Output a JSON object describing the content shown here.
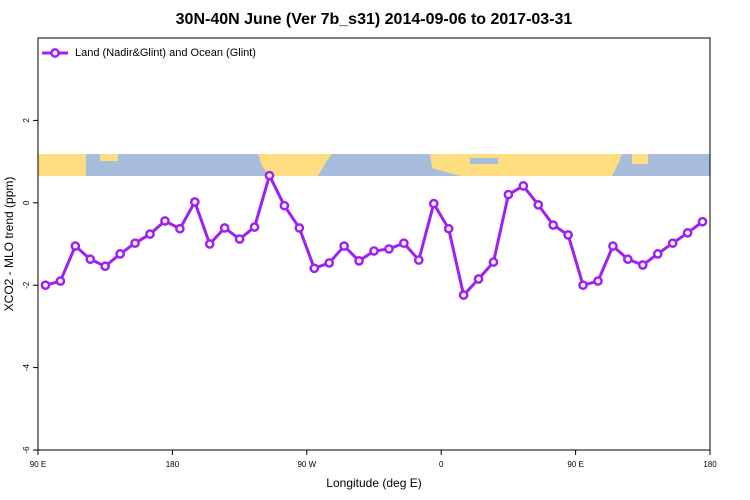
{
  "chart_data": {
    "type": "line",
    "title": "30N-40N June (Ver 7b_s31)   2014-09-06 to 2017-03-31",
    "x_label": "Longitude (deg E)",
    "y_label": "XCO2 - MLO trend (ppm)",
    "xlim": [
      90,
      540
    ],
    "xticks": [
      {
        "value": 90,
        "label": "90 E"
      },
      {
        "value": 180,
        "label": "180"
      },
      {
        "value": 270,
        "label": "90 W"
      },
      {
        "value": 360,
        "label": "0"
      },
      {
        "value": 450,
        "label": "90 E"
      },
      {
        "value": 540,
        "label": "180"
      }
    ],
    "ylim": [
      -6,
      4
    ],
    "yticks": [
      -6,
      -4,
      -2,
      0,
      2
    ],
    "legend": "top-left",
    "x": [
      95,
      105,
      115,
      125,
      135,
      145,
      155,
      165,
      175,
      185,
      195,
      205,
      215,
      225,
      235,
      245,
      255,
      265,
      275,
      285,
      295,
      305,
      315,
      325,
      335,
      345,
      355,
      365,
      375,
      385,
      395,
      405,
      415,
      425,
      435,
      445,
      455,
      465,
      475,
      485,
      495,
      505,
      515,
      525,
      535
    ],
    "series": [
      {
        "name": "Land (Nadir&Glint) and Ocean (Glint)",
        "color": "#a020f0",
        "values": [
          -2.0,
          -1.9,
          -1.05,
          -1.37,
          -1.54,
          -1.24,
          -0.98,
          -0.76,
          -0.44,
          -0.63,
          0.02,
          -1.0,
          -0.61,
          -0.88,
          -0.59,
          0.66,
          -0.07,
          -0.61,
          -1.59,
          -1.46,
          -1.05,
          -1.41,
          -1.17,
          -1.12,
          -0.98,
          -1.39,
          -0.02,
          -0.63,
          -2.24,
          -1.85,
          -1.44,
          0.2,
          0.41,
          -0.05,
          -0.54,
          -0.78,
          -2.0,
          -1.9,
          -1.05,
          -1.37,
          -1.51,
          -1.24,
          -0.98,
          -0.73,
          -0.46
        ]
      }
    ]
  }
}
